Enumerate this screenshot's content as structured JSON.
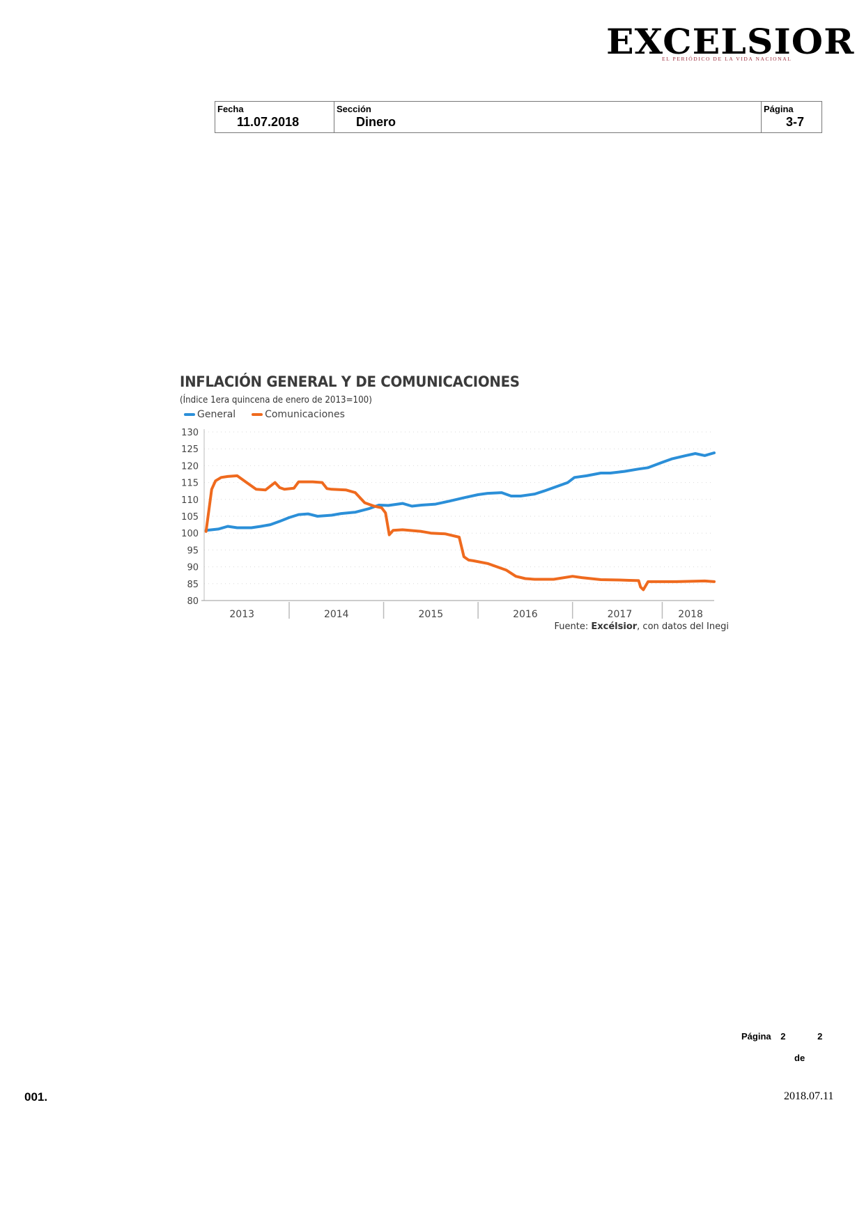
{
  "header": {
    "logo_text": "EXCELSIOR",
    "logo_tagline": "EL PERIÓDICO DE LA VIDA NACIONAL"
  },
  "meta": {
    "fecha_label": "Fecha",
    "fecha_value": "11.07.2018",
    "seccion_label": "Sección",
    "seccion_value": "Dinero",
    "pagina_label": "Página",
    "pagina_value": "3-7"
  },
  "chart_data": {
    "type": "line",
    "title": "INFLACIÓN GENERAL Y DE COMUNICACIONES",
    "subtitle": "(Índice 1era quincena de enero de 2013=100)",
    "source_prefix": "Fuente: ",
    "source_bold": "Excélsior",
    "source_suffix": ", con datos del Inegi",
    "ylim": [
      80,
      130
    ],
    "yticks": [
      "130",
      "125",
      "120",
      "115",
      "110",
      "105",
      "100",
      "95",
      "90",
      "85",
      "80"
    ],
    "xlim": [
      2012.6,
      2018.0
    ],
    "xticks": [
      {
        "label": "2013",
        "x": 2013.0
      },
      {
        "label": "2014",
        "x": 2014.0
      },
      {
        "label": "2015",
        "x": 2015.0
      },
      {
        "label": "2016",
        "x": 2016.0
      },
      {
        "label": "2017",
        "x": 2017.0
      },
      {
        "label": "2018",
        "x": 2017.75
      }
    ],
    "year_separators": [
      2013.5,
      2014.5,
      2015.5,
      2016.5,
      2017.45
    ],
    "legend_position": "top-left",
    "series": [
      {
        "name": "General",
        "color": "#2b8fd8",
        "x": [
          2012.62,
          2012.75,
          2012.85,
          2012.95,
          2013.1,
          2013.2,
          2013.3,
          2013.4,
          2013.5,
          2013.6,
          2013.7,
          2013.8,
          2013.95,
          2014.05,
          2014.2,
          2014.35,
          2014.45,
          2014.55,
          2014.7,
          2014.8,
          2014.9,
          2015.05,
          2015.2,
          2015.35,
          2015.5,
          2015.6,
          2015.75,
          2015.85,
          2015.95,
          2016.1,
          2016.2,
          2016.3,
          2016.45,
          2016.52,
          2016.65,
          2016.8,
          2016.9,
          2017.05,
          2017.2,
          2017.3,
          2017.45,
          2017.55,
          2017.7,
          2017.8,
          2017.9,
          2018.0
        ],
        "values": [
          100.8,
          101.2,
          102.0,
          101.6,
          101.6,
          102.0,
          102.5,
          103.5,
          104.6,
          105.5,
          105.7,
          105.0,
          105.3,
          105.8,
          106.2,
          107.3,
          108.3,
          108.2,
          108.8,
          108.0,
          108.3,
          108.6,
          109.5,
          110.5,
          111.4,
          111.8,
          112.0,
          111.0,
          111.0,
          111.6,
          112.5,
          113.5,
          115.0,
          116.5,
          117.0,
          117.8,
          117.8,
          118.3,
          119.0,
          119.4,
          121.0,
          122.0,
          123.0,
          123.6,
          123.0,
          123.8
        ]
      },
      {
        "name": "Comunicaciones",
        "color": "#ef6a1e",
        "x": [
          2012.62,
          2012.68,
          2012.72,
          2012.78,
          2012.85,
          2012.95,
          2013.05,
          2013.15,
          2013.25,
          2013.35,
          2013.4,
          2013.45,
          2013.55,
          2013.6,
          2013.65,
          2013.75,
          2013.85,
          2013.9,
          2013.95,
          2014.1,
          2014.2,
          2014.3,
          2014.4,
          2014.48,
          2014.52,
          2014.56,
          2014.6,
          2014.7,
          2014.9,
          2015.0,
          2015.15,
          2015.3,
          2015.35,
          2015.4,
          2015.45,
          2015.6,
          2015.8,
          2015.9,
          2016.0,
          2016.1,
          2016.2,
          2016.3,
          2016.5,
          2016.6,
          2016.8,
          2017.0,
          2017.1,
          2017.2,
          2017.22,
          2017.25,
          2017.3,
          2017.6,
          2017.9,
          2018.0
        ],
        "values": [
          100.5,
          113.0,
          115.5,
          116.5,
          116.8,
          117.0,
          115.0,
          113.0,
          112.8,
          115.0,
          113.5,
          113.0,
          113.3,
          115.2,
          115.2,
          115.2,
          115.0,
          113.2,
          113.0,
          112.8,
          112.0,
          109.0,
          108.0,
          107.5,
          106.0,
          99.5,
          100.8,
          101.0,
          100.5,
          100.0,
          99.8,
          98.8,
          93.0,
          92.0,
          91.8,
          91.0,
          89.0,
          87.2,
          86.5,
          86.3,
          86.3,
          86.3,
          87.2,
          86.8,
          86.2,
          86.1,
          86.0,
          85.9,
          84.0,
          83.2,
          85.6,
          85.6,
          85.8,
          85.6
        ]
      }
    ]
  },
  "footer": {
    "pagina_label": "Página",
    "page_current": "2",
    "page_total": "2",
    "de_label": "de",
    "code": "001.",
    "date": "2018.07.11"
  }
}
